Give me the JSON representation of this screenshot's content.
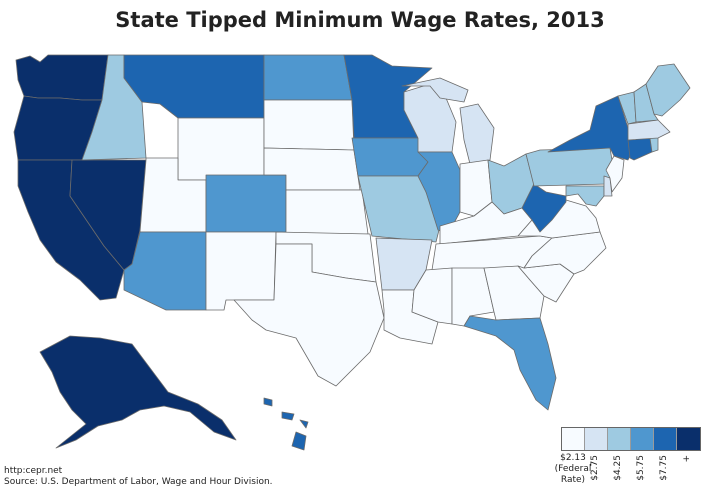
{
  "title": "State Tipped Minimum Wage Rates, 2013",
  "legend": {
    "bins": [
      {
        "label": "$2.13",
        "color": "#f7fbff"
      },
      {
        "label": "$2.75",
        "color": "#d6e4f3"
      },
      {
        "label": "$4.25",
        "color": "#9ecae1"
      },
      {
        "label": "$5.75",
        "color": "#4f97cf"
      },
      {
        "label": "$7.75",
        "color": "#1d65b0"
      },
      {
        "label": "+",
        "color": "#0a2f6b"
      }
    ],
    "federal_note_line1": "(Federal",
    "federal_note_line2": "Rate)"
  },
  "footer": {
    "url": "http:cepr.net",
    "source": "Source: U.S. Department of Labor, Wage and Hour Division."
  },
  "map": {
    "bins": {
      "WA": 5,
      "OR": 5,
      "CA": 5,
      "NV": 5,
      "AK": 5,
      "ID": 2,
      "MT": 4,
      "WY": 0,
      "UT": 0,
      "AZ": 3,
      "CO": 3,
      "NM": 0,
      "ND": 3,
      "SD": 0,
      "NE": 0,
      "KS": 0,
      "OK": 0,
      "TX": 0,
      "MN": 4,
      "IA": 3,
      "MO": 2,
      "AR": 1,
      "LA": 0,
      "WI": 1,
      "IL": 3,
      "MI": 1,
      "IN": 0,
      "OH": 2,
      "KY": 0,
      "TN": 0,
      "MS": 0,
      "AL": 0,
      "GA": 0,
      "FL": 3,
      "SC": 0,
      "NC": 0,
      "VA": 0,
      "WV": 4,
      "PA": 2,
      "NY": 4,
      "VT": 2,
      "NH": 2,
      "ME": 2,
      "MA": 1,
      "CT": 4,
      "RI": 2,
      "NJ": 0,
      "DE": 1,
      "MD": 2,
      "HI": 4
    }
  }
}
